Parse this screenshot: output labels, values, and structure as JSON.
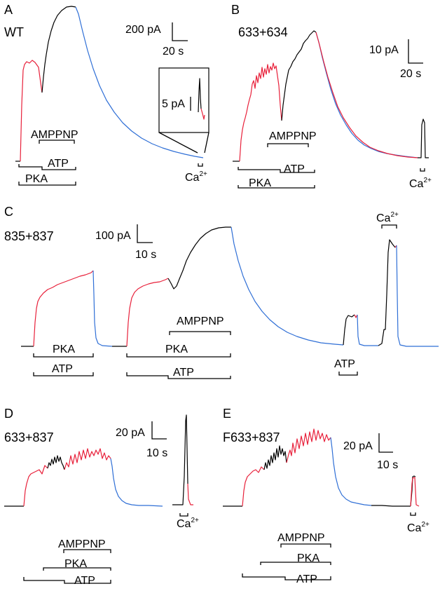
{
  "panels": {
    "A": {
      "letter": "A",
      "construct": "WT",
      "scale_current": "200 pA",
      "scale_time": "20 s",
      "inset_scale": "5 pA",
      "amppnp": "AMPPNP",
      "atp": "ATP",
      "pka": "PKA",
      "ca": "Ca",
      "ca_sup": "2+"
    },
    "B": {
      "letter": "B",
      "construct": "633+634",
      "scale_current": "10 pA",
      "scale_time": "20 s",
      "amppnp": "AMPPNP",
      "atp": "ATP",
      "pka": "PKA",
      "ca": "Ca",
      "ca_sup": "2+"
    },
    "C": {
      "letter": "C",
      "construct": "835+837",
      "scale_current": "100 pA",
      "scale_time": "10 s",
      "amppnp": "AMPPNP",
      "pka_1": "PKA",
      "atp_1": "ATP",
      "pka_2": "PKA",
      "atp_2": "ATP",
      "atp_3": "ATP",
      "ca": "Ca",
      "ca_sup": "2+"
    },
    "D": {
      "letter": "D",
      "construct": "633+837",
      "scale_current": "20 pA",
      "scale_time": "10 s",
      "amppnp": "AMPPNP",
      "pka": "PKA",
      "atp": "ATP",
      "ca": "Ca",
      "ca_sup": "2+"
    },
    "E": {
      "letter": "E",
      "construct": "F633+837",
      "scale_current": "20 pA",
      "scale_time": "10 s",
      "amppnp": "AMPPNP",
      "pka": "PKA",
      "atp": "ATP",
      "ca": "Ca",
      "ca_sup": "2+"
    }
  },
  "colors": {
    "trace_red": "#e8203a",
    "trace_black": "#000000",
    "trace_blue": "#2f6fd6"
  }
}
